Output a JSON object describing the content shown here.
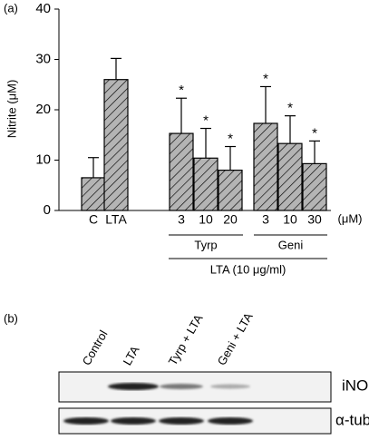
{
  "chart_data": {
    "type": "bar",
    "panel_label": "(a)",
    "y_label": "Nitrite (μM)",
    "categories": [
      "C",
      "LTA",
      "3",
      "10",
      "20",
      "3",
      "10",
      "30"
    ],
    "values": [
      6.5,
      26,
      15.3,
      10.4,
      8,
      17.3,
      13.3,
      9.3
    ],
    "errors": [
      4,
      4.2,
      7,
      5.9,
      4.7,
      7.3,
      5.5,
      4.5
    ],
    "annotations": [
      null,
      null,
      "*",
      "*",
      "*",
      "*",
      "*",
      "*"
    ],
    "x_unit": "(μM)",
    "groups": [
      "Tyrp",
      "Geni",
      "LTA (10 μg/ml)"
    ],
    "color": "#b4b4b4",
    "ylim": [
      0,
      40
    ],
    "yticks": [
      0,
      10,
      20,
      30,
      40
    ]
  },
  "blot": {
    "panel_label": "(b)",
    "lanes": [
      "Control",
      "LTA",
      "Tyrp + LTA",
      "Geni + LTA"
    ],
    "rows": [
      "iNOS",
      "α-tubulin"
    ]
  }
}
